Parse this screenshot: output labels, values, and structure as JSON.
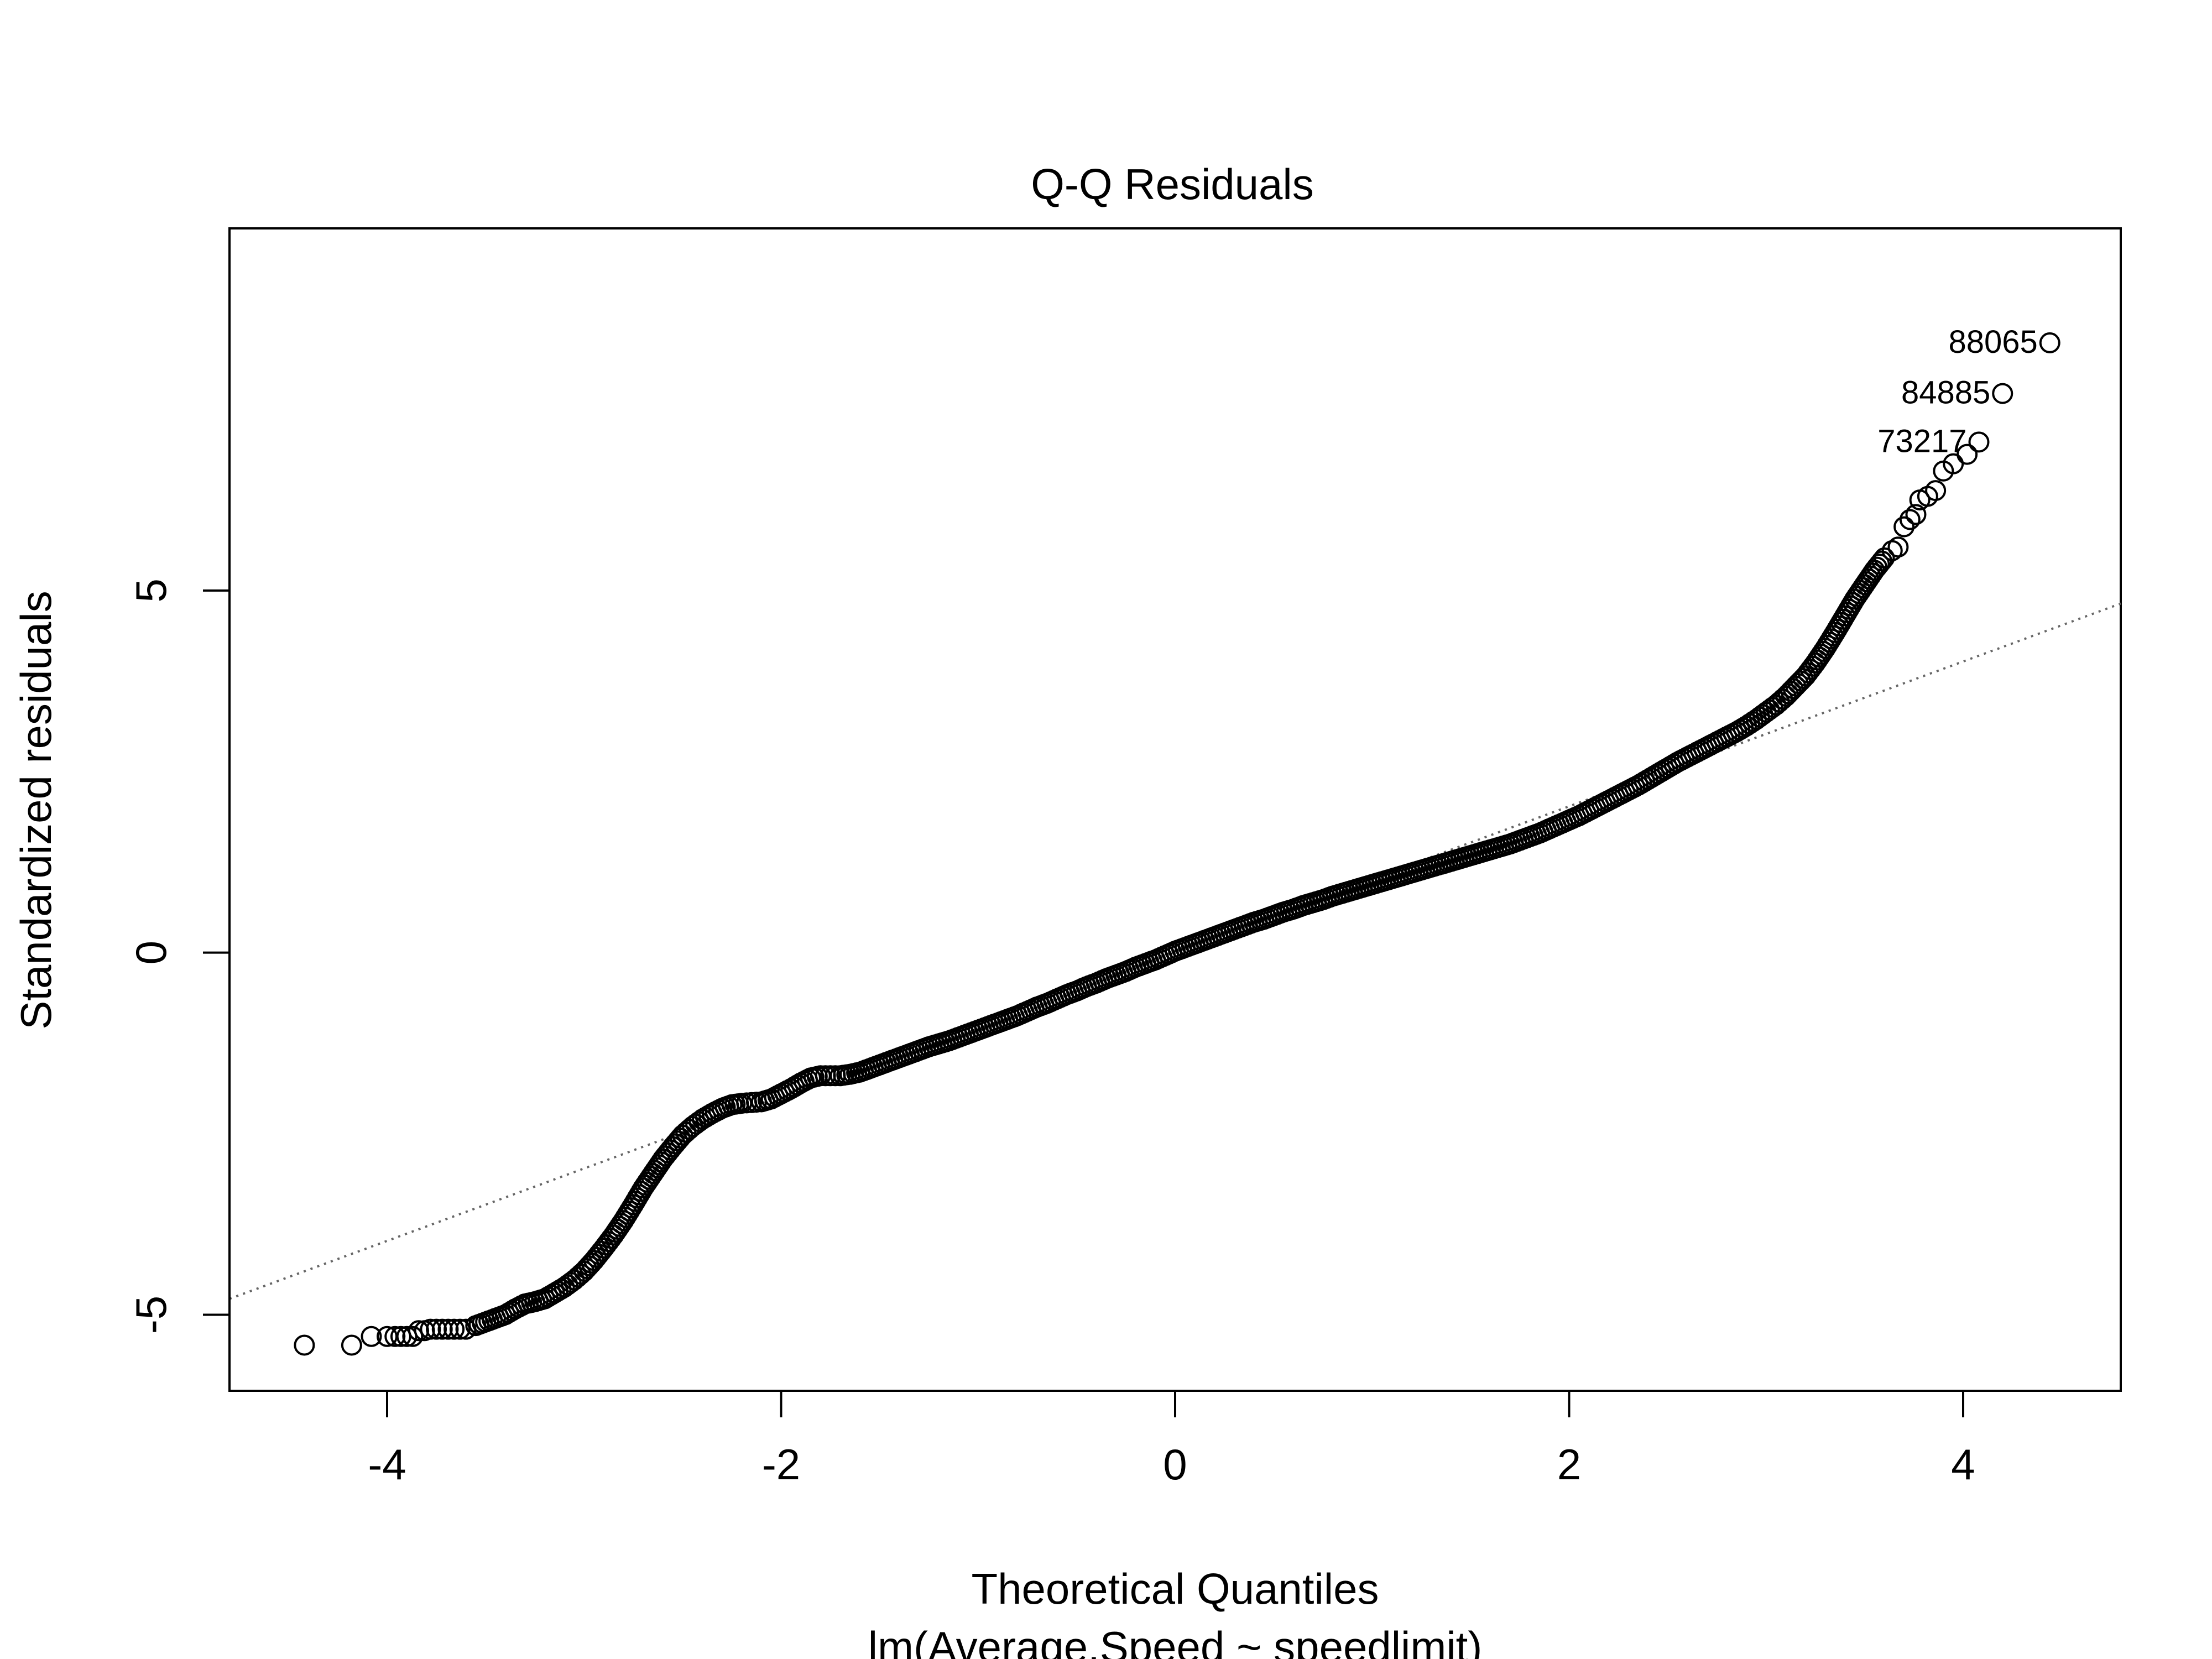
{
  "chart_data": {
    "type": "scatter",
    "title": "Q-Q Residuals",
    "xlabel": "Theoretical Quantiles",
    "sublabel": "lm(Average.Speed ~ speedlimit)",
    "ylabel": "Standardized residuals",
    "xlim": [
      -4.8,
      4.8
    ],
    "ylim": [
      -6.05,
      10.0
    ],
    "x_ticks": [
      -4,
      -2,
      0,
      2,
      4
    ],
    "x_tick_labels": [
      "-4",
      "-2",
      "0",
      "2",
      "4"
    ],
    "y_ticks": [
      -5,
      0,
      5
    ],
    "y_tick_labels": [
      "-5",
      "0",
      "5"
    ],
    "grid": false,
    "reference_line": {
      "slope": 1.0,
      "intercept": 0.02,
      "style": "dotted",
      "color": "#666666"
    },
    "point_color": "#000000",
    "points": [
      [
        -4.42,
        -5.42
      ],
      [
        -4.18,
        -5.42
      ],
      [
        -4.08,
        -5.3
      ],
      [
        -4.0,
        -5.3
      ],
      [
        -3.96,
        -5.3
      ],
      [
        -3.93,
        -5.3
      ],
      [
        -3.9,
        -5.3
      ],
      [
        -3.87,
        -5.3
      ],
      [
        -3.84,
        -5.22
      ],
      [
        -3.81,
        -5.22
      ],
      [
        -3.78,
        -5.2
      ],
      [
        -3.75,
        -5.2
      ],
      [
        -3.72,
        -5.2
      ],
      [
        -3.69,
        -5.2
      ],
      [
        -3.66,
        -5.2
      ],
      [
        -3.63,
        -5.2
      ],
      [
        -3.6,
        -5.2
      ],
      [
        -3.55,
        -5.15
      ],
      [
        -3.5,
        -5.1
      ],
      [
        -3.45,
        -5.05
      ],
      [
        -3.4,
        -5.0
      ],
      [
        -3.35,
        -4.92
      ],
      [
        -3.3,
        -4.85
      ],
      [
        -3.25,
        -4.82
      ],
      [
        -3.2,
        -4.78
      ],
      [
        -3.15,
        -4.7
      ],
      [
        -3.1,
        -4.62
      ],
      [
        -3.05,
        -4.52
      ],
      [
        -3.0,
        -4.4
      ],
      [
        -2.95,
        -4.25
      ],
      [
        -2.9,
        -4.08
      ],
      [
        -2.85,
        -3.9
      ],
      [
        -2.8,
        -3.7
      ],
      [
        -2.75,
        -3.48
      ],
      [
        -2.7,
        -3.25
      ],
      [
        -2.65,
        -3.05
      ],
      [
        -2.6,
        -2.85
      ],
      [
        -2.55,
        -2.68
      ],
      [
        -2.5,
        -2.52
      ],
      [
        -2.45,
        -2.4
      ],
      [
        -2.4,
        -2.3
      ],
      [
        -2.35,
        -2.22
      ],
      [
        -2.3,
        -2.15
      ],
      [
        -2.25,
        -2.1
      ],
      [
        -2.2,
        -2.08
      ],
      [
        -2.15,
        -2.07
      ],
      [
        -2.1,
        -2.06
      ],
      [
        -2.05,
        -2.02
      ],
      [
        -2.0,
        -1.95
      ],
      [
        -1.95,
        -1.88
      ],
      [
        -1.9,
        -1.8
      ],
      [
        -1.85,
        -1.73
      ],
      [
        -1.8,
        -1.7
      ],
      [
        -1.75,
        -1.7
      ],
      [
        -1.7,
        -1.7
      ],
      [
        -1.65,
        -1.68
      ],
      [
        -1.6,
        -1.65
      ],
      [
        -1.55,
        -1.6
      ],
      [
        -1.5,
        -1.55
      ],
      [
        -1.45,
        -1.5
      ],
      [
        -1.4,
        -1.45
      ],
      [
        -1.35,
        -1.4
      ],
      [
        -1.3,
        -1.35
      ],
      [
        -1.25,
        -1.3
      ],
      [
        -1.2,
        -1.26
      ],
      [
        -1.15,
        -1.22
      ],
      [
        -1.1,
        -1.17
      ],
      [
        -1.05,
        -1.12
      ],
      [
        -1.0,
        -1.07
      ],
      [
        -0.95,
        -1.02
      ],
      [
        -0.9,
        -0.97
      ],
      [
        -0.85,
        -0.92
      ],
      [
        -0.8,
        -0.87
      ],
      [
        -0.75,
        -0.81
      ],
      [
        -0.7,
        -0.75
      ],
      [
        -0.65,
        -0.7
      ],
      [
        -0.6,
        -0.64
      ],
      [
        -0.55,
        -0.58
      ],
      [
        -0.5,
        -0.53
      ],
      [
        -0.45,
        -0.47
      ],
      [
        -0.4,
        -0.42
      ],
      [
        -0.35,
        -0.36
      ],
      [
        -0.3,
        -0.31
      ],
      [
        -0.25,
        -0.26
      ],
      [
        -0.2,
        -0.2
      ],
      [
        -0.15,
        -0.15
      ],
      [
        -0.1,
        -0.1
      ],
      [
        -0.05,
        -0.04
      ],
      [
        0.0,
        0.02
      ],
      [
        0.05,
        0.07
      ],
      [
        0.1,
        0.12
      ],
      [
        0.15,
        0.17
      ],
      [
        0.2,
        0.22
      ],
      [
        0.25,
        0.27
      ],
      [
        0.3,
        0.32
      ],
      [
        0.35,
        0.37
      ],
      [
        0.4,
        0.42
      ],
      [
        0.45,
        0.46
      ],
      [
        0.5,
        0.51
      ],
      [
        0.55,
        0.56
      ],
      [
        0.6,
        0.6
      ],
      [
        0.65,
        0.65
      ],
      [
        0.7,
        0.69
      ],
      [
        0.75,
        0.73
      ],
      [
        0.8,
        0.78
      ],
      [
        0.85,
        0.82
      ],
      [
        0.9,
        0.86
      ],
      [
        0.95,
        0.9
      ],
      [
        1.0,
        0.94
      ],
      [
        1.05,
        0.98
      ],
      [
        1.1,
        1.02
      ],
      [
        1.15,
        1.06
      ],
      [
        1.2,
        1.1
      ],
      [
        1.25,
        1.14
      ],
      [
        1.3,
        1.18
      ],
      [
        1.35,
        1.22
      ],
      [
        1.4,
        1.26
      ],
      [
        1.45,
        1.3
      ],
      [
        1.5,
        1.34
      ],
      [
        1.55,
        1.38
      ],
      [
        1.6,
        1.42
      ],
      [
        1.65,
        1.46
      ],
      [
        1.7,
        1.5
      ],
      [
        1.75,
        1.55
      ],
      [
        1.8,
        1.6
      ],
      [
        1.85,
        1.65
      ],
      [
        1.9,
        1.71
      ],
      [
        1.95,
        1.77
      ],
      [
        2.0,
        1.83
      ],
      [
        2.05,
        1.89
      ],
      [
        2.1,
        1.96
      ],
      [
        2.15,
        2.03
      ],
      [
        2.2,
        2.1
      ],
      [
        2.25,
        2.17
      ],
      [
        2.3,
        2.24
      ],
      [
        2.35,
        2.31
      ],
      [
        2.4,
        2.39
      ],
      [
        2.45,
        2.47
      ],
      [
        2.5,
        2.55
      ],
      [
        2.55,
        2.63
      ],
      [
        2.6,
        2.7
      ],
      [
        2.65,
        2.77
      ],
      [
        2.7,
        2.84
      ],
      [
        2.75,
        2.91
      ],
      [
        2.8,
        2.98
      ],
      [
        2.85,
        3.05
      ],
      [
        2.9,
        3.13
      ],
      [
        2.95,
        3.22
      ],
      [
        3.0,
        3.32
      ],
      [
        3.05,
        3.42
      ],
      [
        3.1,
        3.54
      ],
      [
        3.15,
        3.68
      ],
      [
        3.2,
        3.82
      ],
      [
        3.25,
        4.0
      ],
      [
        3.3,
        4.2
      ],
      [
        3.35,
        4.42
      ],
      [
        3.4,
        4.65
      ],
      [
        3.45,
        4.88
      ],
      [
        3.5,
        5.08
      ],
      [
        3.55,
        5.28
      ],
      [
        3.6,
        5.45
      ],
      [
        3.64,
        5.55
      ],
      [
        3.67,
        5.6
      ],
      [
        3.7,
        5.88
      ],
      [
        3.73,
        5.98
      ],
      [
        3.76,
        6.05
      ],
      [
        3.78,
        6.25
      ],
      [
        3.82,
        6.3
      ],
      [
        3.86,
        6.38
      ],
      [
        3.9,
        6.65
      ],
      [
        3.95,
        6.75
      ],
      [
        4.02,
        6.88
      ],
      [
        4.08,
        7.05
      ],
      [
        4.2,
        7.72
      ],
      [
        4.44,
        8.42
      ]
    ],
    "labeled_points": [
      {
        "label": "88065",
        "x": 4.44,
        "y": 8.42
      },
      {
        "label": "84885",
        "x": 4.2,
        "y": 7.72
      },
      {
        "label": "73217",
        "x": 4.08,
        "y": 7.05
      }
    ]
  }
}
